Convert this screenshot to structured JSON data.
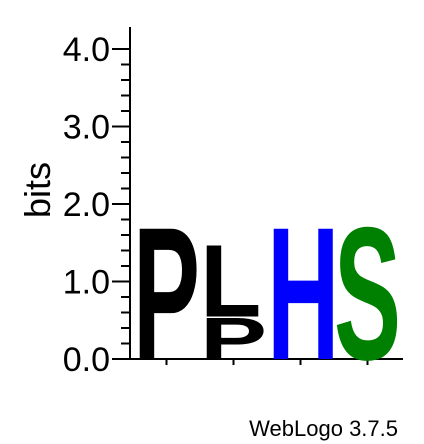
{
  "chart_data": {
    "type": "sequence_logo",
    "ylabel": "bits",
    "ylim": [
      0,
      4.0
    ],
    "yticks": [
      "0.0",
      "1.0",
      "2.0",
      "3.0",
      "4.0"
    ],
    "positions": [
      {
        "stack": [
          {
            "letter": "P",
            "bits": 1.75,
            "color": "#000000"
          }
        ]
      },
      {
        "stack": [
          {
            "letter": "P",
            "bits": 0.55,
            "color": "#000000"
          },
          {
            "letter": "L",
            "bits": 0.95,
            "color": "#000000"
          }
        ]
      },
      {
        "stack": [
          {
            "letter": "H",
            "bits": 1.75,
            "color": "#0000ff"
          }
        ]
      },
      {
        "stack": [
          {
            "letter": "S",
            "bits": 1.75,
            "color": "#008000"
          }
        ]
      }
    ],
    "footer": "WebLogo 3.7.5"
  }
}
